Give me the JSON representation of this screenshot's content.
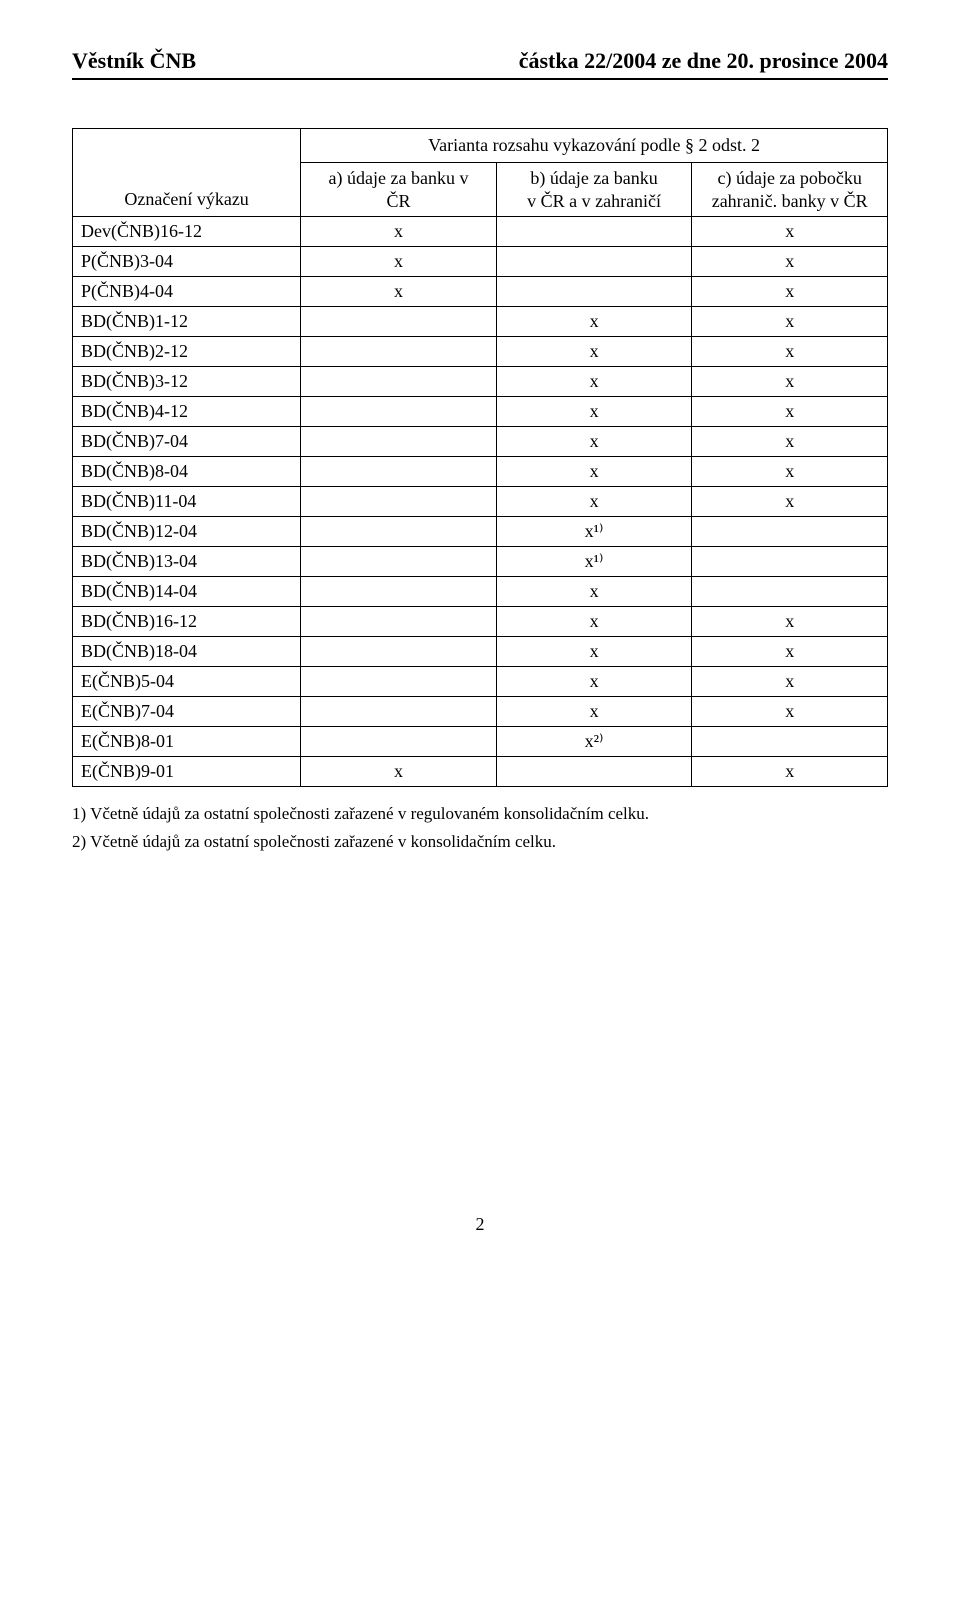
{
  "header": {
    "left": "Věstník ČNB",
    "right": "částka 22/2004 ze dne 20. prosince 2004"
  },
  "table": {
    "head": {
      "row_label": "Označení výkazu",
      "top": "Varianta rozsahu vykazování podle § 2 odst. 2",
      "col_a": "a) údaje za banku v\nČR",
      "col_b": "b) údaje za banku\nv ČR a v zahraničí",
      "col_c": "c) údaje za pobočku\nzahranič. banky v ČR"
    },
    "rows": [
      {
        "label": "Dev(ČNB)16-12",
        "a": "x",
        "b": "",
        "c": "x"
      },
      {
        "label": "P(ČNB)3-04",
        "a": "x",
        "b": "",
        "c": "x"
      },
      {
        "label": "P(ČNB)4-04",
        "a": "x",
        "b": "",
        "c": "x"
      },
      {
        "label": "BD(ČNB)1-12",
        "a": "",
        "b": "x",
        "c": "x"
      },
      {
        "label": "BD(ČNB)2-12",
        "a": "",
        "b": "x",
        "c": "x"
      },
      {
        "label": "BD(ČNB)3-12",
        "a": "",
        "b": "x",
        "c": "x"
      },
      {
        "label": "BD(ČNB)4-12",
        "a": "",
        "b": "x",
        "c": "x"
      },
      {
        "label": "BD(ČNB)7-04",
        "a": "",
        "b": "x",
        "c": "x"
      },
      {
        "label": "BD(ČNB)8-04",
        "a": "",
        "b": "x",
        "c": "x"
      },
      {
        "label": "BD(ČNB)11-04",
        "a": "",
        "b": "x",
        "c": "x"
      },
      {
        "label": "BD(ČNB)12-04",
        "a": "",
        "b": "x¹⁾",
        "c": ""
      },
      {
        "label": "BD(ČNB)13-04",
        "a": "",
        "b": "x¹⁾",
        "c": ""
      },
      {
        "label": "BD(ČNB)14-04",
        "a": "",
        "b": "x",
        "c": ""
      },
      {
        "label": "BD(ČNB)16-12",
        "a": "",
        "b": "x",
        "c": "x"
      },
      {
        "label": "BD(ČNB)18-04",
        "a": "",
        "b": "x",
        "c": "x"
      },
      {
        "label": "E(ČNB)5-04",
        "a": "",
        "b": "x",
        "c": "x"
      },
      {
        "label": "E(ČNB)7-04",
        "a": "",
        "b": "x",
        "c": "x"
      },
      {
        "label": "E(ČNB)8-01",
        "a": "",
        "b": "x²⁾",
        "c": ""
      },
      {
        "label": "E(ČNB)9-01",
        "a": "x",
        "b": "",
        "c": "x"
      }
    ]
  },
  "footnotes": [
    "1) Včetně údajů za ostatní společnosti zařazené v regulovaném konsolidačním celku.",
    "2) Včetně údajů za ostatní společnosti zařazené v konsolidačním celku."
  ],
  "page_number": "2"
}
